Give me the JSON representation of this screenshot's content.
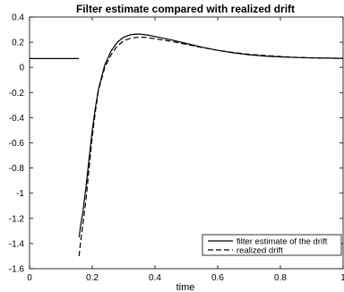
{
  "chart_data": {
    "type": "line",
    "title": "Filter estimate compared with realized drift",
    "xlabel": "time",
    "ylabel": "",
    "xlim": [
      0,
      1
    ],
    "ylim": [
      -1.6,
      0.4
    ],
    "x_ticks": [
      0,
      0.2,
      0.4,
      0.6,
      0.8,
      1
    ],
    "x_tick_labels": [
      "0",
      "0.2",
      "0.4",
      "0.6",
      "0.8",
      "1"
    ],
    "y_ticks": [
      -1.6,
      -1.4,
      -1.2,
      -1,
      -0.8,
      -0.6,
      -0.4,
      -0.2,
      0,
      0.2,
      0.4
    ],
    "y_tick_labels": [
      "-1.6",
      "-1.4",
      "-1.2",
      "-1",
      "-0.8",
      "-0.6",
      "-0.4",
      "-0.2",
      "0",
      "0.2",
      "0.4"
    ],
    "grid": false,
    "legend_position": "bottom-right",
    "series": [
      {
        "name": "filter estimate of the drift",
        "style": "solid",
        "color": "#000000",
        "segments": [
          [
            [
              0,
              0.07
            ],
            [
              0.157,
              0.07
            ]
          ],
          [
            [
              0.158,
              -1.35
            ],
            [
              0.163,
              -1.25
            ],
            [
              0.17,
              -1.15
            ],
            [
              0.18,
              -0.95
            ],
            [
              0.19,
              -0.72
            ],
            [
              0.2,
              -0.5
            ],
            [
              0.21,
              -0.32
            ],
            [
              0.22,
              -0.17
            ],
            [
              0.24,
              0.02
            ],
            [
              0.26,
              0.13
            ],
            [
              0.28,
              0.2
            ],
            [
              0.3,
              0.24
            ],
            [
              0.32,
              0.258
            ],
            [
              0.34,
              0.265
            ],
            [
              0.36,
              0.262
            ],
            [
              0.38,
              0.255
            ],
            [
              0.4,
              0.245
            ],
            [
              0.45,
              0.22
            ],
            [
              0.5,
              0.19
            ],
            [
              0.55,
              0.16
            ],
            [
              0.6,
              0.135
            ],
            [
              0.65,
              0.115
            ],
            [
              0.7,
              0.1
            ],
            [
              0.75,
              0.09
            ],
            [
              0.8,
              0.083
            ],
            [
              0.85,
              0.078
            ],
            [
              0.9,
              0.075
            ],
            [
              0.95,
              0.073
            ],
            [
              1.0,
              0.072
            ]
          ]
        ]
      },
      {
        "name": "realized drift",
        "style": "dashed",
        "color": "#000000",
        "segments": [
          [
            [
              0.158,
              -1.5
            ],
            [
              0.162,
              -1.4
            ],
            [
              0.17,
              -1.25
            ],
            [
              0.18,
              -1.05
            ],
            [
              0.19,
              -0.8
            ],
            [
              0.2,
              -0.55
            ],
            [
              0.21,
              -0.35
            ],
            [
              0.22,
              -0.18
            ],
            [
              0.24,
              0.0
            ],
            [
              0.26,
              0.1
            ],
            [
              0.28,
              0.17
            ],
            [
              0.3,
              0.21
            ],
            [
              0.32,
              0.23
            ],
            [
              0.34,
              0.238
            ],
            [
              0.36,
              0.24
            ],
            [
              0.38,
              0.235
            ],
            [
              0.4,
              0.228
            ],
            [
              0.45,
              0.208
            ],
            [
              0.5,
              0.183
            ],
            [
              0.55,
              0.158
            ],
            [
              0.6,
              0.135
            ],
            [
              0.65,
              0.118
            ],
            [
              0.7,
              0.104
            ],
            [
              0.75,
              0.094
            ],
            [
              0.8,
              0.086
            ],
            [
              0.85,
              0.08
            ],
            [
              0.9,
              0.076
            ],
            [
              0.95,
              0.073
            ],
            [
              1.0,
              0.071
            ]
          ]
        ]
      }
    ]
  }
}
